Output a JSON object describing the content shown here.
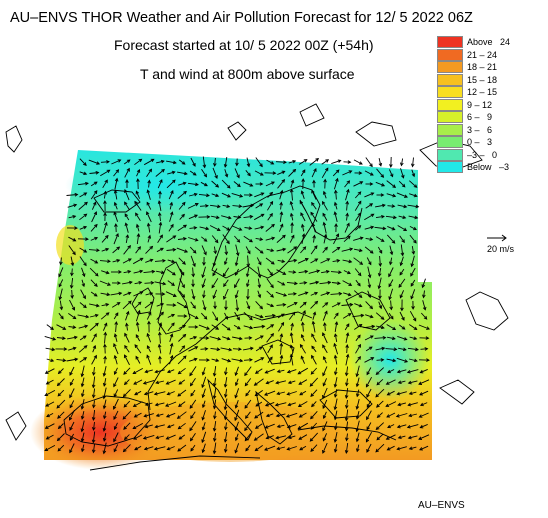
{
  "title": {
    "line1": "AU–ENVS THOR Weather and Air Pollution Forecast for 12/ 5 2022  06Z",
    "line2": "Forecast started at 10/ 5 2022  00Z (+54h)",
    "line3": "T and wind at 800m above surface"
  },
  "legend": {
    "items": [
      {
        "label": "Above   24",
        "color": "#ee3322"
      },
      {
        "label": "21 – 24",
        "color": "#f06a22"
      },
      {
        "label": "18 – 21",
        "color": "#f39a22"
      },
      {
        "label": "15 – 18",
        "color": "#f6c020"
      },
      {
        "label": "12 – 15",
        "color": "#f8de20"
      },
      {
        "label": "9 – 12",
        "color": "#f2f020"
      },
      {
        "label": "6 –   9",
        "color": "#d6f02a"
      },
      {
        "label": "3 –   6",
        "color": "#a8ee4a"
      },
      {
        "label": "0 –   3",
        "color": "#78ec70"
      },
      {
        "label": "–3 –   0",
        "color": "#50e8b0"
      },
      {
        "label": "Below   –3",
        "color": "#22e8e8"
      }
    ]
  },
  "wind_scale": {
    "label": "20 m/s"
  },
  "credit": "AU–ENVS",
  "colors": {
    "arrow": "#000000",
    "coast": "#000000"
  }
}
